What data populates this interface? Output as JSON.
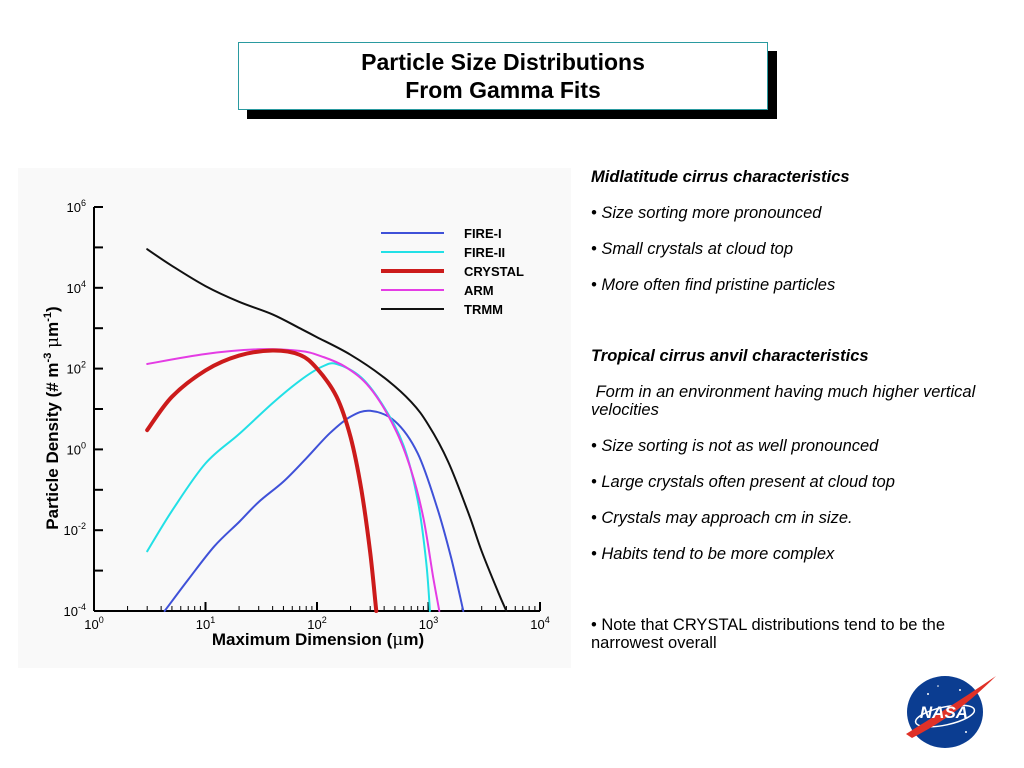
{
  "slide": {
    "title_line1": "Particle Size Distributions",
    "title_line2": "From Gamma Fits"
  },
  "notes": {
    "midlat_heading": "Midlatitude cirrus characteristics",
    "midlat_items": [
      "• Size sorting more pronounced",
      "• Small crystals at cloud top",
      "• More often find pristine particles"
    ],
    "tropical_heading": "Tropical cirrus anvil characteristics",
    "tropical_intro": " Form in an environment having much higher vertical velocities",
    "tropical_items": [
      "• Size sorting is not as well pronounced",
      "• Large crystals often present at cloud top",
      "• Crystals may approach cm in size.",
      "• Habits tend to be more complex"
    ],
    "footnote": "• Note that CRYSTAL distributions tend to be the narrowest overall"
  },
  "logo": {
    "text": "NASA",
    "colors": {
      "blue": "#0b3d91",
      "red": "#e03127"
    }
  },
  "chart_data": {
    "type": "line",
    "xlabel_prefix": "Maximum Dimension (",
    "xlabel_mu": "μ",
    "xlabel_suffix": "m)",
    "ylabel_prefix": "Particle Density (# m",
    "ylabel_sup1": "-3",
    "ylabel_mid": " ",
    "ylabel_mu": "μ",
    "ylabel_m": "m",
    "ylabel_sup2": "-1",
    "ylabel_suffix": ")",
    "x_scale": "log",
    "y_scale": "log",
    "xlim": [
      1,
      10000
    ],
    "ylim": [
      0.0001,
      1000000
    ],
    "x_ticks": [
      {
        "value": 1,
        "base": "10",
        "exp": "0"
      },
      {
        "value": 10,
        "base": "10",
        "exp": "1"
      },
      {
        "value": 100,
        "base": "10",
        "exp": "2"
      },
      {
        "value": 1000,
        "base": "10",
        "exp": "3"
      },
      {
        "value": 10000,
        "base": "10",
        "exp": "4"
      }
    ],
    "y_ticks": [
      {
        "value": 0.0001,
        "base": "10",
        "exp": "-4"
      },
      {
        "value": 0.01,
        "base": "10",
        "exp": "-2"
      },
      {
        "value": 1,
        "base": "10",
        "exp": "0"
      },
      {
        "value": 100,
        "base": "10",
        "exp": "2"
      },
      {
        "value": 10000,
        "base": "10",
        "exp": "4"
      },
      {
        "value": 1000000,
        "base": "10",
        "exp": "6"
      }
    ],
    "legend_position": "top-right",
    "series": [
      {
        "name": "FIRE-I",
        "color": "#3f51d8",
        "width": 2,
        "points": [
          [
            4.3,
            0.0001
          ],
          [
            7,
            0.0006
          ],
          [
            12,
            0.004
          ],
          [
            20,
            0.016
          ],
          [
            30,
            0.05
          ],
          [
            50,
            0.16
          ],
          [
            80,
            0.6
          ],
          [
            130,
            2.5
          ],
          [
            200,
            6.5
          ],
          [
            300,
            9
          ],
          [
            500,
            5
          ],
          [
            800,
            0.8
          ],
          [
            1200,
            0.035
          ],
          [
            1600,
            0.002
          ],
          [
            2050,
            0.0001
          ]
        ]
      },
      {
        "name": "FIRE-II",
        "color": "#22e0e6",
        "width": 2,
        "points": [
          [
            3,
            0.003
          ],
          [
            5,
            0.03
          ],
          [
            10,
            0.45
          ],
          [
            20,
            2.4
          ],
          [
            40,
            14
          ],
          [
            70,
            50
          ],
          [
            110,
            110
          ],
          [
            150,
            130
          ],
          [
            250,
            60
          ],
          [
            400,
            11
          ],
          [
            600,
            1.2
          ],
          [
            800,
            0.055
          ],
          [
            950,
            0.0018
          ],
          [
            1030,
            0.0001
          ]
        ]
      },
      {
        "name": "CRYSTAL",
        "color": "#cc1b1b",
        "width": 4,
        "points": [
          [
            3,
            3
          ],
          [
            5,
            20
          ],
          [
            10,
            90
          ],
          [
            20,
            210
          ],
          [
            40,
            280
          ],
          [
            70,
            220
          ],
          [
            100,
            100
          ],
          [
            150,
            20
          ],
          [
            200,
            2
          ],
          [
            250,
            0.1
          ],
          [
            300,
            0.0028
          ],
          [
            340,
            0.0001
          ]
        ]
      },
      {
        "name": "ARM",
        "color": "#e43ce4",
        "width": 2,
        "points": [
          [
            3,
            130
          ],
          [
            10,
            230
          ],
          [
            30,
            300
          ],
          [
            70,
            275
          ],
          [
            110,
            200
          ],
          [
            180,
            110
          ],
          [
            300,
            33
          ],
          [
            500,
            3.3
          ],
          [
            700,
            0.3
          ],
          [
            900,
            0.02
          ],
          [
            1100,
            0.0007
          ],
          [
            1250,
            0.0001
          ]
        ]
      },
      {
        "name": "TRMM",
        "color": "#111111",
        "width": 2,
        "points": [
          [
            3,
            90000
          ],
          [
            5,
            35000
          ],
          [
            10,
            11000
          ],
          [
            20,
            4500
          ],
          [
            40,
            2200
          ],
          [
            70,
            1000
          ],
          [
            100,
            600
          ],
          [
            200,
            220
          ],
          [
            400,
            60
          ],
          [
            700,
            15
          ],
          [
            1000,
            4
          ],
          [
            1500,
            0.5
          ],
          [
            2300,
            0.025
          ],
          [
            3000,
            0.003
          ],
          [
            4200,
            0.0003
          ],
          [
            5000,
            0.0001
          ]
        ]
      }
    ]
  }
}
